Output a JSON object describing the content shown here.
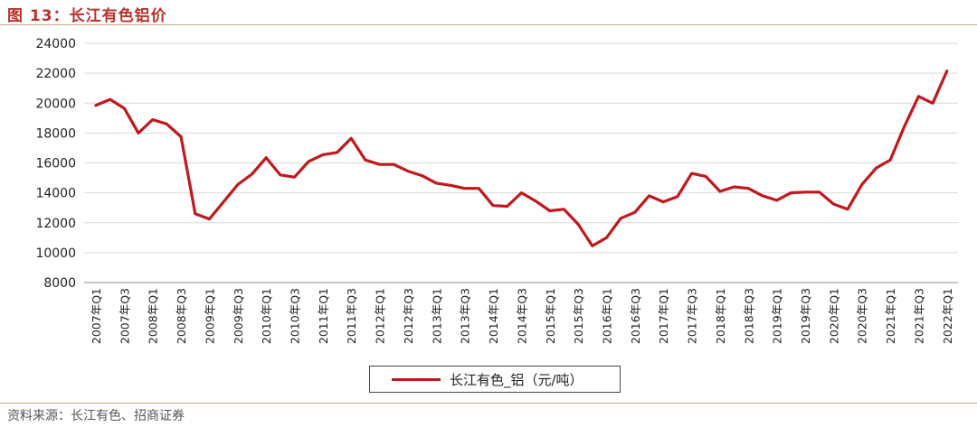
{
  "header": {
    "title": "图 13：长江有色铝价"
  },
  "footer": {
    "source": "资料来源：长江有色、招商证券"
  },
  "chart_data": {
    "type": "line",
    "title": "图 13：长江有色铝价",
    "xlabel": "",
    "ylabel": "",
    "ylim": [
      8000,
      24000
    ],
    "yticks": [
      8000,
      10000,
      12000,
      14000,
      16000,
      18000,
      20000,
      22000,
      24000
    ],
    "grid": true,
    "legend": "bottom-center",
    "color": "#c0181d",
    "categories": [
      "2007年Q1",
      "2007年Q2",
      "2007年Q3",
      "2007年Q4",
      "2008年Q1",
      "2008年Q2",
      "2008年Q3",
      "2008年Q4",
      "2009年Q1",
      "2009年Q2",
      "2009年Q3",
      "2009年Q4",
      "2010年Q1",
      "2010年Q2",
      "2010年Q3",
      "2010年Q4",
      "2011年Q1",
      "2011年Q2",
      "2011年Q3",
      "2011年Q4",
      "2012年Q1",
      "2012年Q2",
      "2012年Q3",
      "2012年Q4",
      "2013年Q1",
      "2013年Q2",
      "2013年Q3",
      "2013年Q4",
      "2014年Q1",
      "2014年Q2",
      "2014年Q3",
      "2014年Q4",
      "2015年Q1",
      "2015年Q2",
      "2015年Q3",
      "2015年Q4",
      "2016年Q1",
      "2016年Q2",
      "2016年Q3",
      "2016年Q4",
      "2017年Q1",
      "2017年Q2",
      "2017年Q3",
      "2017年Q4",
      "2018年Q1",
      "2018年Q2",
      "2018年Q3",
      "2018年Q4",
      "2019年Q1",
      "2019年Q2",
      "2019年Q3",
      "2019年Q4",
      "2020年Q1",
      "2020年Q2",
      "2020年Q3",
      "2020年Q4",
      "2021年Q1",
      "2021年Q2",
      "2021年Q3",
      "2021年Q4",
      "2022年Q1"
    ],
    "tick_labels": [
      "2007年Q1",
      "2007年Q3",
      "2008年Q1",
      "2008年Q3",
      "2009年Q1",
      "2009年Q3",
      "2010年Q1",
      "2010年Q3",
      "2011年Q1",
      "2011年Q3",
      "2012年Q1",
      "2012年Q3",
      "2013年Q1",
      "2013年Q3",
      "2014年Q1",
      "2014年Q3",
      "2015年Q1",
      "2015年Q3",
      "2016年Q1",
      "2016年Q3",
      "2017年Q1",
      "2017年Q3",
      "2018年Q1",
      "2018年Q3",
      "2019年Q1",
      "2019年Q3",
      "2020年Q1",
      "2020年Q3",
      "2021年Q1",
      "2021年Q3",
      "2022年Q1"
    ],
    "series": [
      {
        "name": "长江有色_铝（元/吨）",
        "values": [
          19850,
          20250,
          19650,
          18000,
          18900,
          18600,
          17750,
          12600,
          12250,
          13400,
          14550,
          15250,
          16350,
          15200,
          15050,
          16100,
          16550,
          16700,
          17650,
          16200,
          15900,
          15900,
          15450,
          15150,
          14650,
          14500,
          14300,
          14300,
          13150,
          13100,
          14000,
          13450,
          12800,
          12900,
          11900,
          10450,
          11000,
          12300,
          12700,
          13800,
          13400,
          13750,
          15300,
          15100,
          14100,
          14400,
          14300,
          13800,
          13500,
          14000,
          14050,
          14050,
          13250,
          12900,
          14550,
          15650,
          16200,
          18450,
          20450,
          20000,
          22150
        ]
      }
    ]
  }
}
